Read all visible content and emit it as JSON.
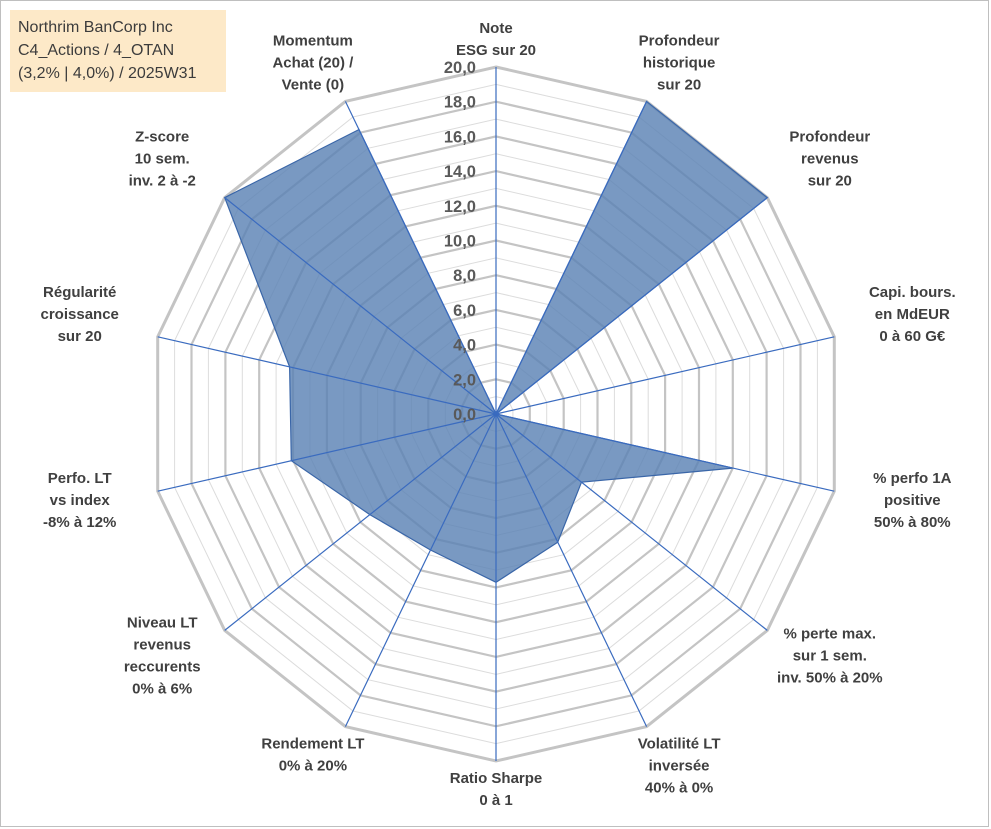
{
  "info_box": {
    "line1": "Northrim BanCorp Inc",
    "line2": "C4_Actions / 4_OTAN",
    "line3": "(3,2% | 4,0%) / 2025W31"
  },
  "chart_data": {
    "type": "radar",
    "title": "",
    "rmin": 0,
    "rmax": 20,
    "tick_step": 2,
    "ticks": [
      "0,0",
      "2,0",
      "4,0",
      "6,0",
      "8,0",
      "10,0",
      "12,0",
      "14,0",
      "16,0",
      "18,0",
      "20,0"
    ],
    "grid": true,
    "axes": [
      {
        "label": [
          "Note",
          "ESG sur 20"
        ],
        "value": 0
      },
      {
        "label": [
          "Profondeur",
          "historique",
          "sur 20"
        ],
        "value": 20
      },
      {
        "label": [
          "Profondeur",
          "revenus",
          "sur 20"
        ],
        "value": 20
      },
      {
        "label": [
          "Capi. bours.",
          "en MdEUR",
          "0 à 60 G€"
        ],
        "value": 0
      },
      {
        "label": [
          "% perfo 1A",
          "positive",
          "50% à 80%"
        ],
        "value": 14.0
      },
      {
        "label": [
          "% perte max.",
          "sur 1 sem.",
          "inv. 50% à 20%"
        ],
        "value": 6.3
      },
      {
        "label": [
          "Volatilité LT",
          "inversée",
          "40% à 0%"
        ],
        "value": 8.2
      },
      {
        "label": [
          "Ratio Sharpe",
          "0 à 1"
        ],
        "value": 9.7
      },
      {
        "label": [
          "Rendement LT",
          "0% à 20%"
        ],
        "value": 8.7
      },
      {
        "label": [
          "Niveau LT",
          "revenus",
          "reccurents",
          "0% à 6%"
        ],
        "value": 9.3
      },
      {
        "label": [
          "Perfo. LT",
          "vs index",
          "-8% à 12%"
        ],
        "value": 12.1
      },
      {
        "label": [
          "Régularité",
          "croissance",
          "sur 20"
        ],
        "value": 12.2
      },
      {
        "label": [
          "Z-score",
          "10 sem.",
          "inv. 2 à -2"
        ],
        "value": 20
      },
      {
        "label": [
          "Momentum",
          "Achat (20) /",
          "Vente (0)"
        ],
        "value": 18.2
      }
    ],
    "colors": {
      "fill": "#5b82b5",
      "stroke": "#3a66a8",
      "spoke": "#3a6bbf",
      "grid_major": "#c4c4c4",
      "grid_minor": "#dcdcdc"
    }
  }
}
